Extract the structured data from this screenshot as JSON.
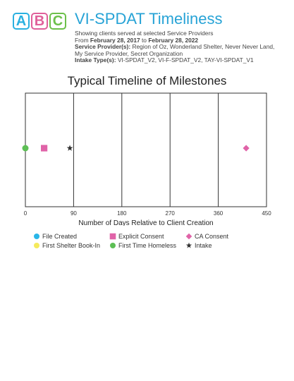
{
  "logo": {
    "letters": [
      "A",
      "B",
      "C"
    ],
    "colors": [
      "#2ab0e0",
      "#e0609a",
      "#6cc04a"
    ]
  },
  "header": {
    "title": "VI-SPDAT Timeliness",
    "subtitle": "Showing clients served at selected Service Providers",
    "date_prefix": "From",
    "date_from": "February 28, 2017",
    "date_join": "to",
    "date_to": "February 28, 2022",
    "providers_label": "Service Provider(s):",
    "providers_value": "Region of Oz, Wonderland Shelter, Never Never Land, My Service Provider, Secret Organization",
    "intake_label": "Intake Type(s):",
    "intake_value": "VI-SPDAT_V2, VI-F-SPDAT_V2, TAY-VI-SPDAT_V1"
  },
  "chart_data": {
    "type": "scatter",
    "title": "Typical Timeline of Milestones",
    "xlabel": "Number of Days Relative to Client Creation",
    "ylabel": "",
    "xlim": [
      0,
      450
    ],
    "xticks": [
      0,
      90,
      180,
      270,
      360,
      450
    ],
    "grid": "vertical",
    "legend_position": "bottom",
    "series": [
      {
        "name": "File Created",
        "marker": "circle",
        "color": "#29b6e8",
        "x": null
      },
      {
        "name": "Explicit Consent",
        "marker": "square",
        "color": "#e063a8",
        "x": 35
      },
      {
        "name": "CA Consent",
        "marker": "diamond",
        "color": "#e063a8",
        "x": 412
      },
      {
        "name": "First Shelter Book-In",
        "marker": "circle",
        "color": "#f5ea5c",
        "x": null
      },
      {
        "name": "First Time Homeless",
        "marker": "circle",
        "color": "#5dbf55",
        "x": 0
      },
      {
        "name": "Intake",
        "marker": "star",
        "color": "#333333",
        "x": 83
      }
    ]
  }
}
